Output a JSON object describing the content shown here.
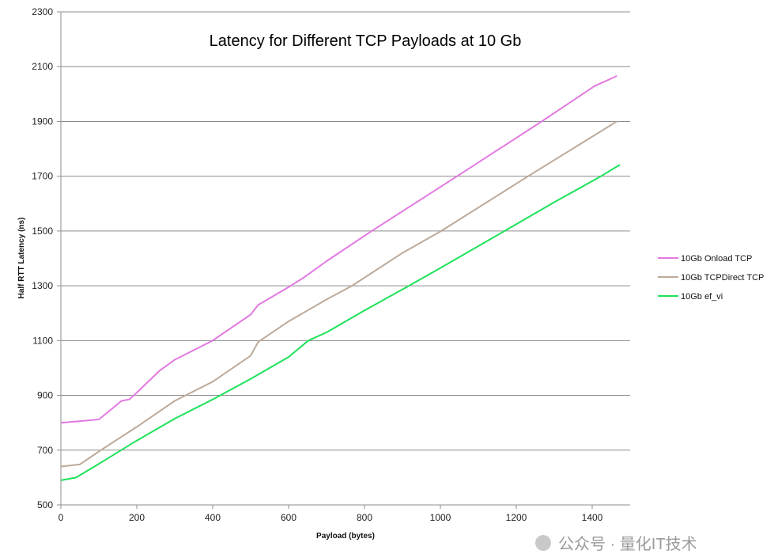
{
  "chart_data": {
    "type": "line",
    "title": "Latency for Different TCP Payloads at 10 Gb",
    "xlabel": "Payload (bytes)",
    "ylabel": "Half RTT Latency (ns)",
    "xlim": [
      0,
      1500
    ],
    "ylim": [
      500,
      2300
    ],
    "xticks": [
      0,
      200,
      400,
      600,
      800,
      1000,
      1200,
      1400
    ],
    "yticks": [
      500,
      700,
      900,
      1100,
      1300,
      1500,
      1700,
      1900,
      2100,
      2300
    ],
    "grid": "horizontal",
    "legend_position": "right",
    "series": [
      {
        "name": "10Gb Onload TCP",
        "color": "#e27ae0",
        "x": [
          0,
          100,
          160,
          180,
          200,
          260,
          300,
          400,
          500,
          520,
          600,
          640,
          700,
          819,
          1044,
          1267,
          1406,
          1465
        ],
        "y": [
          800,
          812,
          880,
          885,
          910,
          990,
          1030,
          1100,
          1195,
          1230,
          1295,
          1330,
          1390,
          1500,
          1700,
          1900,
          2029,
          2066
        ]
      },
      {
        "name": "10Gb TCPDirect TCP",
        "color": "#bcaa9a",
        "x": [
          0,
          50,
          100,
          200,
          300,
          400,
          500,
          520,
          600,
          700,
          767,
          900,
          1002,
          1231,
          1465
        ],
        "y": [
          640,
          648,
          695,
          785,
          880,
          950,
          1045,
          1095,
          1170,
          1250,
          1300,
          1420,
          1500,
          1700,
          1900
        ]
      },
      {
        "name": "10Gb ef_vi",
        "color": "#1de25a",
        "x": [
          0,
          40,
          100,
          200,
          300,
          400,
          500,
          600,
          652,
          700,
          800,
          917,
          1000,
          1169,
          1300,
          1423,
          1473
        ],
        "y": [
          590,
          600,
          650,
          735,
          815,
          885,
          960,
          1040,
          1100,
          1130,
          1210,
          1300,
          1365,
          1500,
          1605,
          1700,
          1742
        ]
      }
    ]
  },
  "watermark": "公众号 · 量化IT技术"
}
